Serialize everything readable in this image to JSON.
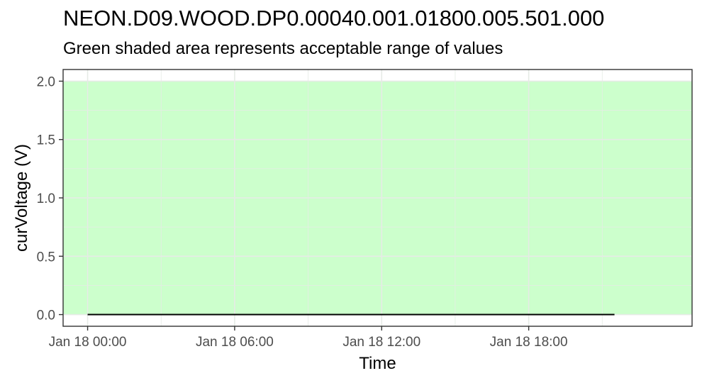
{
  "title": "NEON.D09.WOOD.DP0.00040.001.01800.005.501.000",
  "subtitle": "Green shaded area represents acceptable range of values",
  "colors": {
    "band": "#ccffcc",
    "line": "#000000",
    "grid": "#e6ebe6",
    "panel_border": "#333333",
    "tick_text": "#4d4d4d"
  },
  "chart_data": {
    "type": "line",
    "title": "NEON.D09.WOOD.DP0.00040.001.01800.005.501.000",
    "subtitle": "Green shaded area represents acceptable range of values",
    "xlabel": "Time",
    "ylabel": "curVoltage (V)",
    "x_ticks": [
      "Jan 18 00:00",
      "Jan 18 06:00",
      "Jan 18 12:00",
      "Jan 18 18:00"
    ],
    "y_ticks": [
      "0.0",
      "0.5",
      "1.0",
      "1.5",
      "2.0"
    ],
    "xlim": [
      "Jan 17 23:00",
      "Jan 19 00:40"
    ],
    "ylim": [
      -0.1,
      2.1
    ],
    "grid": true,
    "acceptable_range": {
      "ymin": 0.0,
      "ymax": 2.0
    },
    "series": [
      {
        "x": [
          "Jan 18 00:00",
          "Jan 18 21:30"
        ],
        "y": [
          0.0,
          0.0
        ]
      }
    ]
  }
}
